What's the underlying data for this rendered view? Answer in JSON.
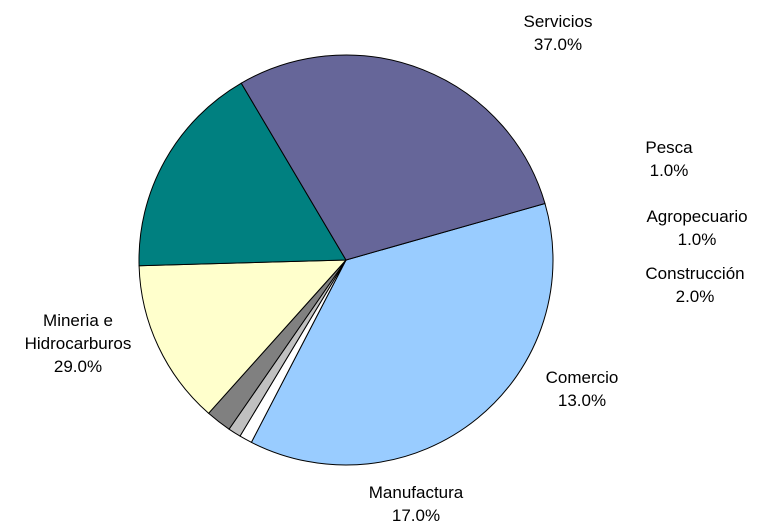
{
  "chart_data": {
    "type": "pie",
    "title": "",
    "legend": "none",
    "slices": [
      {
        "label_lines": [
          "Servicios"
        ],
        "value": 37.0,
        "value_label": "37.0%",
        "color": "#99CCFF"
      },
      {
        "label_lines": [
          "Pesca"
        ],
        "value": 1.0,
        "value_label": "1.0%",
        "color": "#FFFFFF"
      },
      {
        "label_lines": [
          "Agropecuario"
        ],
        "value": 1.0,
        "value_label": "1.0%",
        "color": "#C0C0C0"
      },
      {
        "label_lines": [
          "Construcción"
        ],
        "value": 2.0,
        "value_label": "2.0%",
        "color": "#808080"
      },
      {
        "label_lines": [
          "Comercio"
        ],
        "value": 13.0,
        "value_label": "13.0%",
        "color": "#FFFFCC"
      },
      {
        "label_lines": [
          "Manufactura"
        ],
        "value": 17.0,
        "value_label": "17.0%",
        "color": "#008080"
      },
      {
        "label_lines": [
          "Mineria e",
          "Hidrocarburos"
        ],
        "value": 29.0,
        "value_label": "29.0%",
        "color": "#666699"
      }
    ]
  }
}
